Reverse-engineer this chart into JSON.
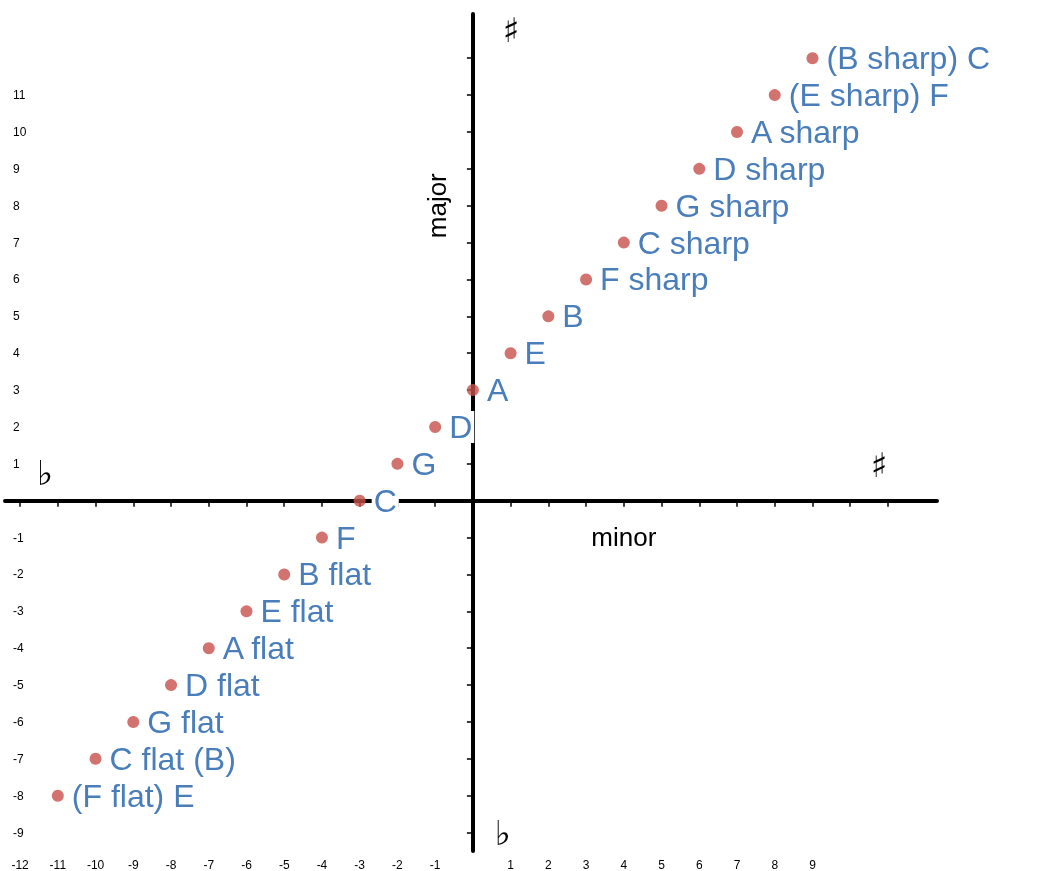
{
  "chart_data": {
    "type": "scatter",
    "xlabel": "minor",
    "ylabel": "major",
    "x": [
      -11,
      -10,
      -9,
      -8,
      -7,
      -6,
      -5,
      -4,
      -3,
      -2,
      -1,
      0,
      1,
      2,
      3,
      4,
      5,
      6,
      7,
      8,
      9
    ],
    "series": [
      {
        "color": "#c8504b",
        "values": [
          -8,
          -7,
          -6,
          -5,
          -4,
          -3,
          -2,
          -1,
          0,
          1,
          2,
          3,
          4,
          5,
          6,
          7,
          8,
          9,
          10,
          11,
          12
        ]
      }
    ],
    "marker": "circle",
    "grid": false,
    "xlim": [
      -12.4,
      12.3
    ],
    "ylim": [
      -9.5,
      13.2
    ],
    "xticks": [
      -12,
      -11,
      -10,
      -9,
      -8,
      -7,
      -6,
      -5,
      -4,
      -3,
      -2,
      -1,
      1,
      2,
      3,
      4,
      5,
      6,
      7,
      8,
      9,
      {
        "value": 10,
        "label": null
      },
      {
        "value": 11,
        "label": null
      }
    ],
    "yticks": [
      -9,
      -8,
      -7,
      -6,
      -5,
      -4,
      -3,
      -2,
      -1,
      1,
      2,
      3,
      4,
      5,
      6,
      7,
      8,
      9,
      10,
      11,
      {
        "value": 12,
        "label": null
      }
    ],
    "annotations": [
      {
        "text": "(F flat) E",
        "x": -11,
        "y": -8
      },
      {
        "text": "C flat (B)",
        "x": -10,
        "y": -7
      },
      {
        "text": "G flat",
        "x": -9,
        "y": -6
      },
      {
        "text": "D flat",
        "x": -8,
        "y": -5
      },
      {
        "text": "A flat",
        "x": -7,
        "y": -4
      },
      {
        "text": "E flat",
        "x": -6,
        "y": -3
      },
      {
        "text": "B flat",
        "x": -5,
        "y": -2
      },
      {
        "text": "F",
        "x": -4,
        "y": -1
      },
      {
        "text": "C",
        "x": -3,
        "y": 0
      },
      {
        "text": "G",
        "x": -2,
        "y": 1
      },
      {
        "text": "D",
        "x": -1,
        "y": 2
      },
      {
        "text": "A",
        "x": 0,
        "y": 3
      },
      {
        "text": "E",
        "x": 1,
        "y": 4
      },
      {
        "text": "B",
        "x": 2,
        "y": 5
      },
      {
        "text": "F sharp",
        "x": 3,
        "y": 6
      },
      {
        "text": "C sharp",
        "x": 4,
        "y": 7
      },
      {
        "text": "G sharp",
        "x": 5,
        "y": 8
      },
      {
        "text": "D sharp",
        "x": 6,
        "y": 9
      },
      {
        "text": "A sharp",
        "x": 7,
        "y": 10
      },
      {
        "text": "(E sharp) F",
        "x": 8,
        "y": 11
      },
      {
        "text": "(B sharp) C",
        "x": 9,
        "y": 12
      },
      "♯",
      "♯",
      "♭",
      "♭"
    ]
  }
}
